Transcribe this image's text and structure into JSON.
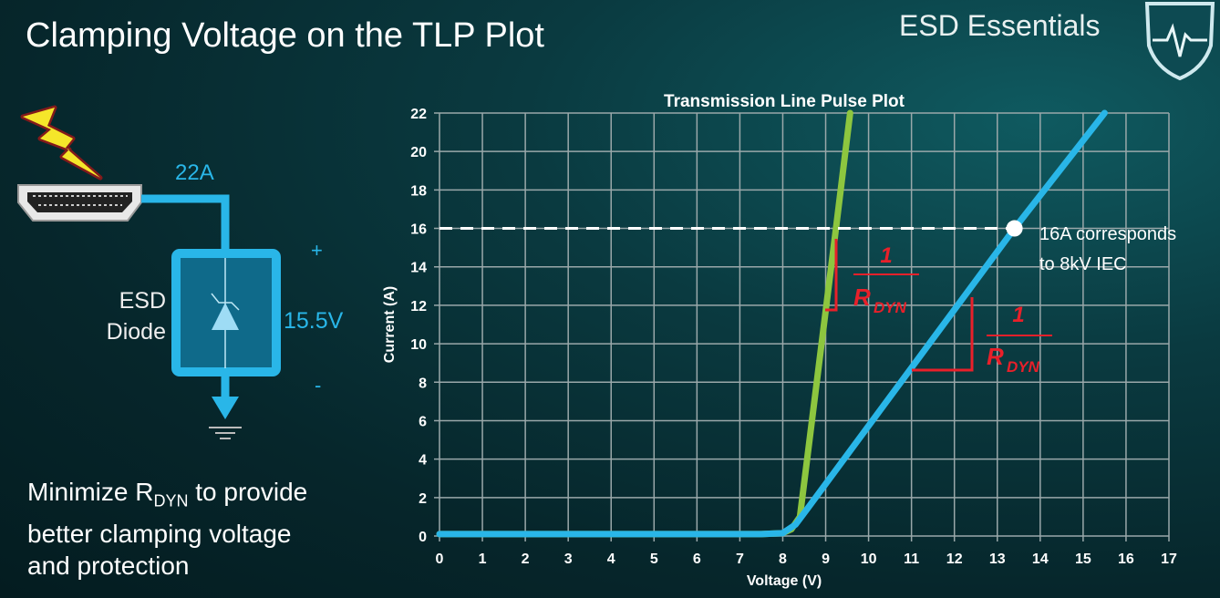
{
  "slide": {
    "title": "Clamping Voltage on the TLP Plot",
    "brand": "ESD Essentials",
    "logo_icon": "shield-heartbeat-icon",
    "caption_pre": "Minimize R",
    "caption_sub": "DYN",
    "caption_post_line1": " to provide",
    "caption_line2": "better clamping voltage",
    "caption_line3": "and protection"
  },
  "circuit": {
    "current_label": "22A",
    "device_label_line1": "ESD",
    "device_label_line2": "Diode",
    "voltage_label": "15.5V",
    "plus_label": "+",
    "minus_label": "-",
    "connector_icon": "hdmi-connector-icon",
    "esd_icon": "lightning-bolt-icon",
    "ground_icon": "ground-icon",
    "accent_color": "#29b6e8"
  },
  "chart_data": {
    "type": "line",
    "title": "Transmission Line Pulse Plot",
    "xlabel": "Voltage (V)",
    "ylabel": "Current (A)",
    "xlim": [
      0,
      17
    ],
    "ylim": [
      0,
      22
    ],
    "xticks": [
      0,
      1,
      2,
      3,
      4,
      5,
      6,
      7,
      8,
      9,
      10,
      11,
      12,
      13,
      14,
      15,
      16,
      17
    ],
    "yticks": [
      0,
      2,
      4,
      6,
      8,
      10,
      12,
      14,
      16,
      18,
      20,
      22
    ],
    "grid": true,
    "series": [
      {
        "color": "#8dc63f",
        "x": [
          0,
          7.5,
          8.0,
          8.2,
          8.4,
          9.24,
          9.57
        ],
        "y": [
          0.1,
          0.1,
          0.15,
          0.35,
          1.0,
          16,
          22
        ]
      },
      {
        "color": "#29b6e8",
        "x": [
          0,
          7.5,
          8.0,
          8.3,
          8.6,
          13.4,
          15.5
        ],
        "y": [
          0.1,
          0.1,
          0.15,
          0.6,
          1.5,
          16,
          22
        ]
      }
    ],
    "reference_line": {
      "y": 16,
      "style": "dashed",
      "color": "#ffffff"
    },
    "highlight_point": {
      "x": 13.4,
      "y": 16
    },
    "annotation": {
      "line1": "16A corresponds",
      "line2": "to 8kV IEC"
    },
    "slope_labels": [
      {
        "numerator": "1",
        "denominator": "R",
        "subscript": "DYN",
        "color": "#e8202a"
      },
      {
        "numerator": "1",
        "denominator": "R",
        "subscript": "DYN",
        "color": "#e8202a"
      }
    ]
  }
}
